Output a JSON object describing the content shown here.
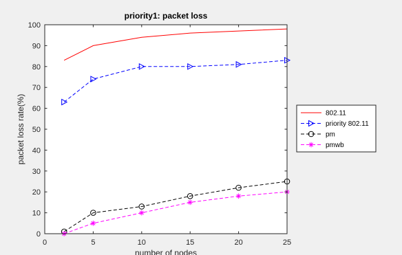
{
  "chart_data": {
    "type": "line",
    "title": "priority1: packet loss",
    "xlabel": "number of nodes",
    "ylabel": "packet loss rate(%)",
    "xlim": [
      0,
      25
    ],
    "ylim": [
      0,
      100
    ],
    "xticks": [
      "0",
      "5",
      "10",
      "15",
      "20",
      "25"
    ],
    "yticks": [
      "0",
      "10",
      "20",
      "30",
      "40",
      "50",
      "60",
      "70",
      "80",
      "90",
      "100"
    ],
    "grid": false,
    "legend_position": "right",
    "series": [
      {
        "name": "802.11",
        "color": "#ff0000",
        "style": "solid",
        "marker": "none",
        "x": [
          2,
          5,
          10,
          15,
          20,
          25
        ],
        "y": [
          83,
          90,
          94,
          96,
          97,
          98
        ]
      },
      {
        "name": "priority 802.11",
        "color": "#0000ff",
        "style": "dashed",
        "marker": "triangle-right",
        "x": [
          2,
          5,
          10,
          15,
          20,
          25
        ],
        "y": [
          63,
          74,
          80,
          80,
          81,
          83
        ]
      },
      {
        "name": "pm",
        "color": "#000000",
        "style": "dashed",
        "marker": "circle",
        "x": [
          2,
          5,
          10,
          15,
          20,
          25
        ],
        "y": [
          1,
          10,
          13,
          18,
          22,
          25
        ]
      },
      {
        "name": "pmwb",
        "color": "#ff00ff",
        "style": "dashed",
        "marker": "asterisk",
        "x": [
          2,
          5,
          10,
          15,
          20,
          25
        ],
        "y": [
          0,
          5,
          10,
          15,
          18,
          20
        ]
      }
    ]
  }
}
